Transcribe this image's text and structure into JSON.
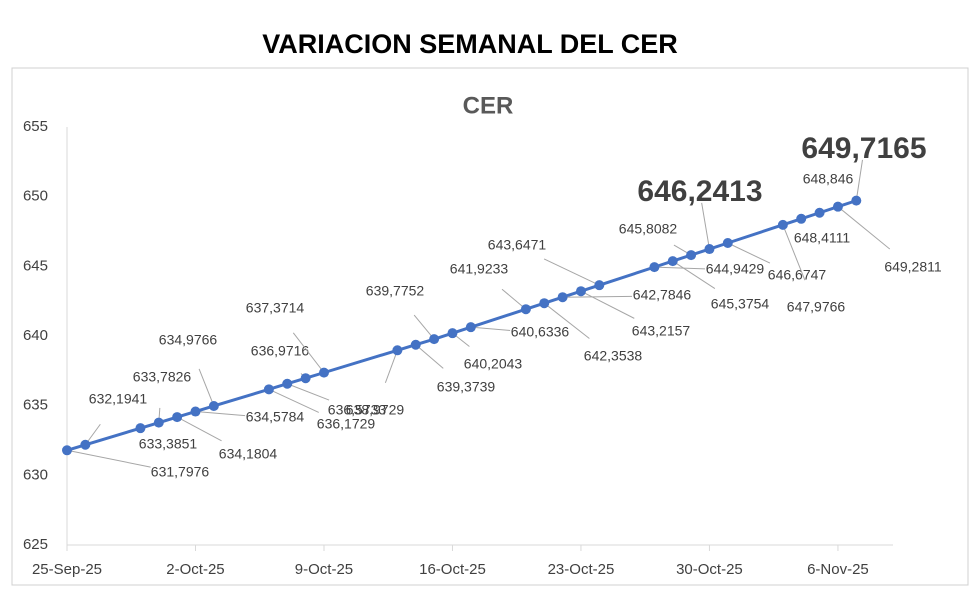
{
  "chart_data": {
    "type": "line",
    "title": "VARIACION SEMANAL DEL CER",
    "subtitle": "CER",
    "x": [
      "2025-09-25",
      "2025-09-26",
      "2025-09-29",
      "2025-09-30",
      "2025-10-01",
      "2025-10-02",
      "2025-10-03",
      "2025-10-06",
      "2025-10-07",
      "2025-10-08",
      "2025-10-09",
      "2025-10-13",
      "2025-10-14",
      "2025-10-15",
      "2025-10-16",
      "2025-10-17",
      "2025-10-20",
      "2025-10-21",
      "2025-10-22",
      "2025-10-23",
      "2025-10-24",
      "2025-10-27",
      "2025-10-28",
      "2025-10-29",
      "2025-10-30",
      "2025-10-31",
      "2025-11-03",
      "2025-11-04",
      "2025-11-05",
      "2025-11-06",
      "2025-11-07"
    ],
    "series": [
      {
        "color": "#4472c4",
        "values": [
          631.7976,
          632.1941,
          633.3851,
          633.7826,
          634.1804,
          634.5784,
          634.9766,
          636.1729,
          636.5733,
          636.9716,
          637.3714,
          638.9729,
          639.3739,
          639.7752,
          640.2043,
          640.6336,
          641.9233,
          642.3538,
          642.7846,
          643.2157,
          643.6471,
          644.9429,
          645.3754,
          645.8082,
          646.2413,
          646.6747,
          647.9766,
          648.4111,
          648.846,
          649.2811,
          649.7165
        ],
        "value_labels": [
          "631,7976",
          "632,1941",
          "633,3851",
          "633,7826",
          "634,1804",
          "634,5784",
          "634,9766",
          "636,1729",
          "636,5733",
          "636,9716",
          "637,3714",
          "638,9729",
          "639,3739",
          "639,7752",
          "640,2043",
          "640,6336",
          "641,9233",
          "642,3538",
          "642,7846",
          "643,2157",
          "643,6471",
          "644,9429",
          "645,3754",
          "645,8082",
          "646,2413",
          "646,6747",
          "647,9766",
          "648,4111",
          "648,846",
          "649,2811",
          "649,7165"
        ]
      }
    ],
    "xlim": [
      "2025-09-25",
      "2025-11-09"
    ],
    "xticks": [
      {
        "value": "2025-09-25",
        "label": "25-Sep-25"
      },
      {
        "value": "2025-10-02",
        "label": "2-Oct-25"
      },
      {
        "value": "2025-10-09",
        "label": "9-Oct-25"
      },
      {
        "value": "2025-10-16",
        "label": "16-Oct-25"
      },
      {
        "value": "2025-10-23",
        "label": "23-Oct-25"
      },
      {
        "value": "2025-10-30",
        "label": "30-Oct-25"
      },
      {
        "value": "2025-11-06",
        "label": "6-Nov-25"
      }
    ],
    "ylim": [
      625,
      655
    ],
    "yticks": [
      625,
      630,
      635,
      640,
      645,
      650,
      655
    ],
    "grid": false
  }
}
